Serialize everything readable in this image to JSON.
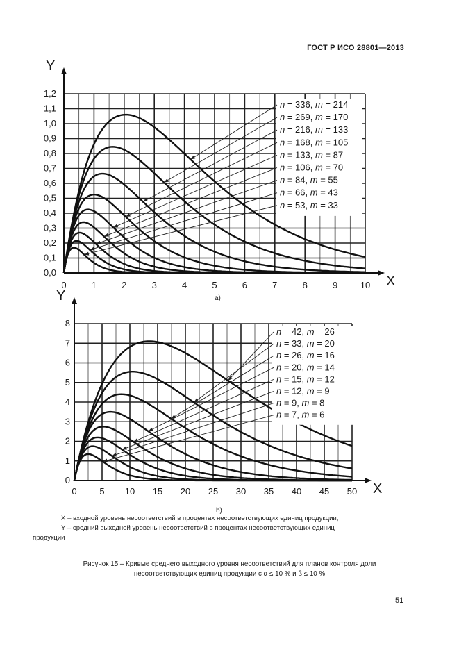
{
  "header": {
    "standard": "ГОСТ Р ИСО 28801—2013"
  },
  "captions": {
    "sub_a": "a)",
    "sub_b": "b)",
    "note_x": "X – входной уровень несоответствий в процентах несоответствующих единиц продукции;",
    "note_y_line1": "Y – средний выходной уровень несоответствий в процентах несоответствующих единиц",
    "note_y_line2": "продукции",
    "figure_line1": "Рисунок 15 – Кривые среднего выходного уровня несоответствий для планов контроля доли",
    "figure_line2": "несоответствующих единиц продукции с α ≤ 10 % и β ≤ 10 %"
  },
  "page_number": "51",
  "chart_data": [
    {
      "id": "a",
      "type": "line",
      "xlabel": "X",
      "ylabel": "Y",
      "xlim": [
        0,
        10
      ],
      "ylim": [
        0,
        1.2
      ],
      "xticks": [
        "0",
        "1",
        "2",
        "3",
        "4",
        "5",
        "6",
        "7",
        "8",
        "9",
        "10"
      ],
      "yticks": [
        "0,0",
        "0,1",
        "0,2",
        "0,3",
        "0,4",
        "0,5",
        "0,6",
        "0,7",
        "0,8",
        "0,9",
        "1,0",
        "1,1",
        "1,2"
      ],
      "grid": true,
      "legend_placement": "right, labels with leader lines to curves",
      "series": [
        {
          "name": "n = 336, m = 214",
          "n": "336",
          "m": "214",
          "peak_x": 2.05,
          "peak_y": 1.06
        },
        {
          "name": "n = 269, m = 170",
          "n": "269",
          "m": "170",
          "peak_x": 1.62,
          "peak_y": 0.845
        },
        {
          "name": "n = 216, m = 133",
          "n": "216",
          "m": "133",
          "peak_x": 1.28,
          "peak_y": 0.665
        },
        {
          "name": "n = 168, m = 105",
          "n": "168",
          "m": "105",
          "peak_x": 1.0,
          "peak_y": 0.525
        },
        {
          "name": "n = 133, m = 87",
          "n": "133",
          "m": "87",
          "peak_x": 0.8,
          "peak_y": 0.425
        },
        {
          "name": "n = 106, m = 70",
          "n": "106",
          "m": "70",
          "peak_x": 0.65,
          "peak_y": 0.34
        },
        {
          "name": "n = 84, m = 55",
          "n": "84",
          "m": "55",
          "peak_x": 0.52,
          "peak_y": 0.27
        },
        {
          "name": "n = 66, m = 43",
          "n": "66",
          "m": "43",
          "peak_x": 0.42,
          "peak_y": 0.215
        },
        {
          "name": "n = 53, m = 33",
          "n": "53",
          "m": "33",
          "peak_x": 0.33,
          "peak_y": 0.17
        }
      ]
    },
    {
      "id": "b",
      "type": "line",
      "xlabel": "X",
      "ylabel": "Y",
      "xlim": [
        0,
        50
      ],
      "ylim": [
        0,
        8
      ],
      "xticks": [
        "0",
        "5",
        "10",
        "15",
        "20",
        "25",
        "30",
        "35",
        "40",
        "45",
        "50"
      ],
      "yticks": [
        "0",
        "1",
        "2",
        "3",
        "4",
        "5",
        "6",
        "7",
        "8"
      ],
      "grid": true,
      "legend_placement": "right, labels with leader lines to curves",
      "series": [
        {
          "name": "n = 42, m = 26",
          "n": "42",
          "m": "26",
          "peak_x": 13.5,
          "peak_y": 7.1
        },
        {
          "name": "n = 33, m = 20",
          "n": "33",
          "m": "20",
          "peak_x": 10.5,
          "peak_y": 5.55
        },
        {
          "name": "n = 26, m = 16",
          "n": "26",
          "m": "16",
          "peak_x": 8.5,
          "peak_y": 4.4
        },
        {
          "name": "n = 20, m = 14",
          "n": "20",
          "m": "14",
          "peak_x": 6.5,
          "peak_y": 3.5
        },
        {
          "name": "n = 15, m = 12",
          "n": "15",
          "m": "12",
          "peak_x": 5.2,
          "peak_y": 2.75
        },
        {
          "name": "n = 12, m = 9",
          "n": "12",
          "m": "9",
          "peak_x": 4.2,
          "peak_y": 2.2
        },
        {
          "name": "n = 9, m = 8",
          "n": "9",
          "m": "8",
          "peak_x": 3.3,
          "peak_y": 1.75
        },
        {
          "name": "n = 7, m = 6",
          "n": "7",
          "m": "6",
          "peak_x": 2.5,
          "peak_y": 1.35
        }
      ]
    }
  ]
}
